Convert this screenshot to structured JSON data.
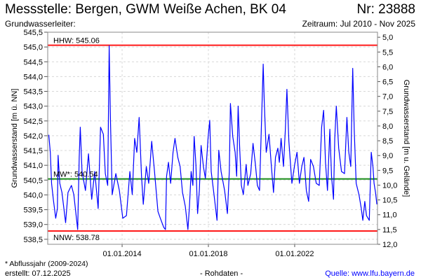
{
  "header": {
    "title": "Messstelle: Bergen, GWM Weiße Achen, BK 04",
    "number": "Nr: 23888",
    "aquifer": "Grundwasserleiter:",
    "period": "Zeitraum: Jul 2010 - Nov 2025"
  },
  "footer": {
    "note": "* Abflussjahr (2009-2024)",
    "created": "erstellt:  07.12.2025",
    "raw": "- Rohdaten -",
    "source": "Quelle: www.lfu.bayern.de"
  },
  "chart_data": {
    "type": "line",
    "title": "Messstelle: Bergen, GWM Weiße Achen, BK 04",
    "ylabel": "Grundwasserstand [m ü. NN]",
    "y2label": "Grundwasserstand [m u. Gelände]",
    "xlim": [
      2010.55,
      2025.84
    ],
    "ylim": [
      538.33,
      545.5
    ],
    "ground_level": 550.33,
    "yticks": [
      "538,5",
      "539,0",
      "539,5",
      "540,0",
      "540,5",
      "541,0",
      "541,5",
      "542,0",
      "542,5",
      "543,0",
      "543,5",
      "544,0",
      "544,5",
      "545,0",
      "545,5"
    ],
    "ytick_values": [
      538.5,
      539.0,
      539.5,
      540.0,
      540.5,
      541.0,
      541.5,
      542.0,
      542.5,
      543.0,
      543.5,
      544.0,
      544.5,
      545.0,
      545.5
    ],
    "y2ticks": [
      "5,0",
      "5,5",
      "6,0",
      "6,5",
      "7,0",
      "7,5",
      "8,0",
      "8,5",
      "9,0",
      "9,5",
      "10,0",
      "10,5",
      "11,0",
      "11,5",
      "12,0"
    ],
    "y2tick_values": [
      5.0,
      5.5,
      6.0,
      6.5,
      7.0,
      7.5,
      8.0,
      8.5,
      9.0,
      9.5,
      10.0,
      10.5,
      11.0,
      11.5,
      12.0
    ],
    "xticks": [
      "01.01.2014",
      "01.01.2018",
      "01.01.2022"
    ],
    "xtick_values": [
      2014.0,
      2018.0,
      2022.0
    ],
    "grid": true,
    "reference_lines": [
      {
        "label": "HHW: 545.06",
        "value": 545.06,
        "color": "#ff0000"
      },
      {
        "label": "MW*: 540.54",
        "value": 540.54,
        "color": "#008000"
      },
      {
        "label": "NNW: 538.78",
        "value": 538.78,
        "color": "#ff0000"
      }
    ],
    "series": [
      {
        "name": "Grundwasserstand",
        "color": "#0000ff",
        "points": [
          [
            2010.6,
            542.03
          ],
          [
            2010.67,
            541.44
          ],
          [
            2010.73,
            540.39
          ],
          [
            2010.81,
            539.85
          ],
          [
            2010.92,
            539.21
          ],
          [
            2011.0,
            539.54
          ],
          [
            2011.03,
            541.34
          ],
          [
            2011.11,
            540.39
          ],
          [
            2011.21,
            540.08
          ],
          [
            2011.38,
            539.06
          ],
          [
            2011.49,
            540.08
          ],
          [
            2011.65,
            540.32
          ],
          [
            2011.76,
            540.01
          ],
          [
            2011.94,
            538.83
          ],
          [
            2012.01,
            541.27
          ],
          [
            2012.06,
            542.29
          ],
          [
            2012.14,
            540.79
          ],
          [
            2012.3,
            540.15
          ],
          [
            2012.44,
            541.39
          ],
          [
            2012.59,
            539.85
          ],
          [
            2012.73,
            540.79
          ],
          [
            2012.89,
            539.54
          ],
          [
            2013.0,
            542.29
          ],
          [
            2013.13,
            542.05
          ],
          [
            2013.22,
            540.72
          ],
          [
            2013.33,
            540.32
          ],
          [
            2013.4,
            545.04
          ],
          [
            2013.46,
            542.45
          ],
          [
            2013.54,
            540.01
          ],
          [
            2013.71,
            540.72
          ],
          [
            2013.87,
            540.15
          ],
          [
            2014.03,
            539.21
          ],
          [
            2014.2,
            539.3
          ],
          [
            2014.36,
            540.79
          ],
          [
            2014.47,
            540.01
          ],
          [
            2014.58,
            541.91
          ],
          [
            2014.68,
            541.44
          ],
          [
            2014.79,
            542.62
          ],
          [
            2014.9,
            540.63
          ],
          [
            2014.98,
            539.68
          ],
          [
            2015.12,
            540.96
          ],
          [
            2015.23,
            540.39
          ],
          [
            2015.37,
            541.81
          ],
          [
            2015.5,
            540.79
          ],
          [
            2015.66,
            539.44
          ],
          [
            2015.77,
            539.21
          ],
          [
            2015.93,
            538.9
          ],
          [
            2016.01,
            538.83
          ],
          [
            2016.06,
            540.63
          ],
          [
            2016.15,
            541.1
          ],
          [
            2016.25,
            540.39
          ],
          [
            2016.36,
            541.44
          ],
          [
            2016.45,
            541.91
          ],
          [
            2016.58,
            541.27
          ],
          [
            2016.69,
            540.96
          ],
          [
            2016.8,
            540.08
          ],
          [
            2016.93,
            539.61
          ],
          [
            2017.05,
            538.83
          ],
          [
            2017.12,
            539.61
          ],
          [
            2017.2,
            540.79
          ],
          [
            2017.28,
            540.32
          ],
          [
            2017.34,
            541.98
          ],
          [
            2017.42,
            541.03
          ],
          [
            2017.5,
            539.37
          ],
          [
            2017.58,
            540.15
          ],
          [
            2017.66,
            541.67
          ],
          [
            2017.77,
            540.96
          ],
          [
            2017.86,
            540.56
          ],
          [
            2017.99,
            541.98
          ],
          [
            2018.06,
            542.52
          ],
          [
            2018.13,
            540.79
          ],
          [
            2018.26,
            540.01
          ],
          [
            2018.4,
            539.14
          ],
          [
            2018.48,
            541.51
          ],
          [
            2018.59,
            540.79
          ],
          [
            2018.75,
            540.15
          ],
          [
            2018.88,
            539.37
          ],
          [
            2018.97,
            540.79
          ],
          [
            2019.02,
            543.09
          ],
          [
            2019.13,
            541.98
          ],
          [
            2019.24,
            541.44
          ],
          [
            2019.31,
            540.63
          ],
          [
            2019.38,
            543.0
          ],
          [
            2019.45,
            541.58
          ],
          [
            2019.53,
            540.32
          ],
          [
            2019.62,
            540.01
          ],
          [
            2019.75,
            541.03
          ],
          [
            2019.83,
            540.32
          ],
          [
            2019.96,
            540.72
          ],
          [
            2020.07,
            541.74
          ],
          [
            2020.18,
            541.03
          ],
          [
            2020.27,
            540.32
          ],
          [
            2020.37,
            540.15
          ],
          [
            2020.46,
            542.38
          ],
          [
            2020.54,
            544.42
          ],
          [
            2020.59,
            543.16
          ],
          [
            2020.68,
            541.44
          ],
          [
            2020.81,
            542.05
          ],
          [
            2020.92,
            540.96
          ],
          [
            2021.02,
            540.08
          ],
          [
            2021.11,
            541.27
          ],
          [
            2021.22,
            541.58
          ],
          [
            2021.29,
            541.1
          ],
          [
            2021.37,
            541.91
          ],
          [
            2021.48,
            540.96
          ],
          [
            2021.57,
            542.22
          ],
          [
            2021.64,
            543.57
          ],
          [
            2021.73,
            541.81
          ],
          [
            2021.87,
            540.39
          ],
          [
            2022.0,
            541.03
          ],
          [
            2022.11,
            541.44
          ],
          [
            2022.22,
            540.39
          ],
          [
            2022.33,
            540.96
          ],
          [
            2022.43,
            541.27
          ],
          [
            2022.54,
            540.15
          ],
          [
            2022.65,
            539.78
          ],
          [
            2022.74,
            541.2
          ],
          [
            2022.87,
            540.96
          ],
          [
            2023.0,
            540.39
          ],
          [
            2023.14,
            540.32
          ],
          [
            2023.25,
            542.29
          ],
          [
            2023.34,
            542.86
          ],
          [
            2023.43,
            541.1
          ],
          [
            2023.52,
            540.15
          ],
          [
            2023.63,
            542.22
          ],
          [
            2023.71,
            540.63
          ],
          [
            2023.8,
            539.85
          ],
          [
            2023.86,
            541.91
          ],
          [
            2023.93,
            543.0
          ],
          [
            2024.04,
            541.58
          ],
          [
            2024.17,
            540.79
          ],
          [
            2024.31,
            540.72
          ],
          [
            2024.42,
            542.62
          ],
          [
            2024.51,
            541.44
          ],
          [
            2024.6,
            540.96
          ],
          [
            2024.69,
            544.28
          ],
          [
            2024.76,
            542.22
          ],
          [
            2024.85,
            540.39
          ],
          [
            2024.98,
            540.01
          ],
          [
            2025.09,
            539.54
          ],
          [
            2025.16,
            539.14
          ],
          [
            2025.25,
            539.78
          ],
          [
            2025.33,
            539.3
          ],
          [
            2025.46,
            539.14
          ],
          [
            2025.55,
            541.44
          ],
          [
            2025.63,
            540.96
          ],
          [
            2025.68,
            540.39
          ],
          [
            2025.75,
            540.08
          ],
          [
            2025.81,
            539.68
          ]
        ]
      }
    ]
  }
}
